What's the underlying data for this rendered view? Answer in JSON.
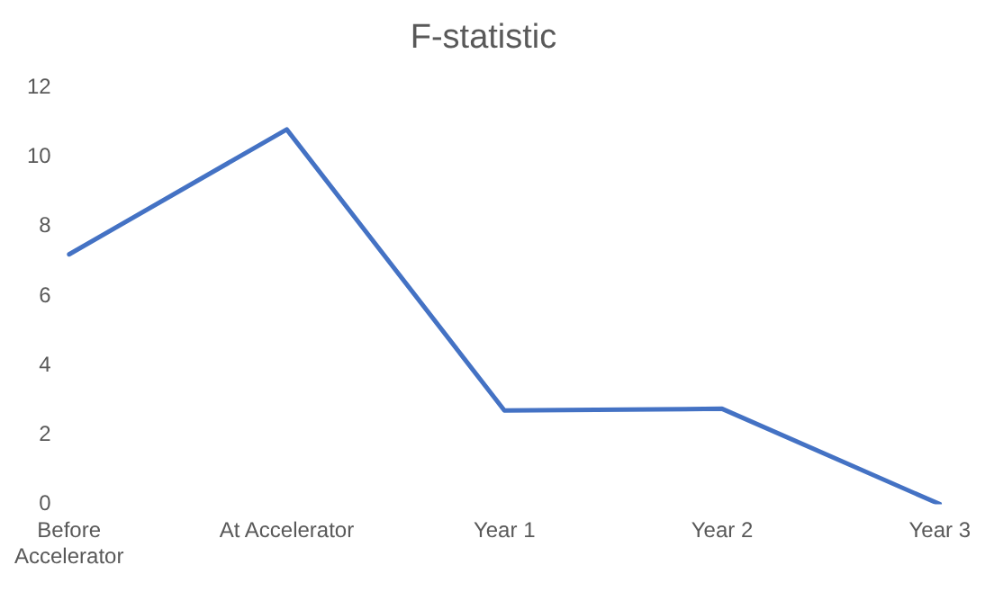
{
  "chart_data": {
    "type": "line",
    "title": "F-statistic",
    "categories": [
      "Before Accelerator",
      "At Accelerator",
      "Year 1",
      "Year 2",
      "Year 3"
    ],
    "series": [
      {
        "color": "#4472c4",
        "values": [
          7.2,
          10.8,
          2.7,
          2.75,
          0
        ]
      }
    ],
    "ylim": [
      0,
      12
    ],
    "yticks": [
      0,
      2,
      4,
      6,
      8,
      10,
      12
    ],
    "grid": false,
    "legend": false,
    "marker": "none",
    "line_style": "solid"
  }
}
